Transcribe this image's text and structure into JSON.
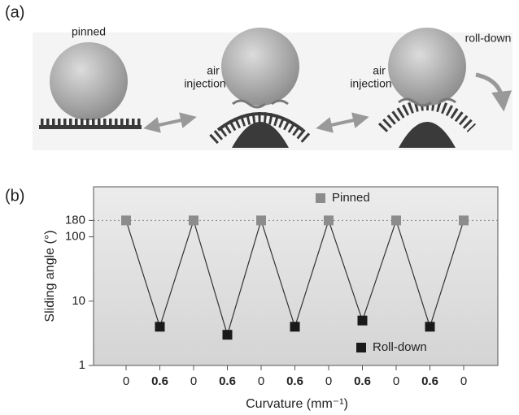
{
  "panel_a": {
    "label": "(a)",
    "state_1": "pinned",
    "injection_1": [
      "air",
      "injection"
    ],
    "injection_2": [
      "air",
      "injection"
    ],
    "state_3": "roll-down"
  },
  "chart_data": {
    "type": "line",
    "panel_label": "(b)",
    "categories": [
      "0",
      "0.6",
      "0",
      "0.6",
      "0",
      "0.6",
      "0",
      "0.6",
      "0",
      "0.6",
      "0"
    ],
    "series": [
      {
        "name": "Pinned",
        "color": "#8c8c8c",
        "values": [
          180,
          null,
          180,
          null,
          180,
          null,
          180,
          null,
          180,
          null,
          180
        ]
      },
      {
        "name": "Roll-down",
        "color": "#1a1a1a",
        "values": [
          null,
          4,
          null,
          3,
          null,
          4,
          null,
          5,
          null,
          4,
          null
        ]
      }
    ],
    "log_y": true,
    "ylim": [
      1,
      600
    ],
    "yticks": [
      1,
      10,
      100,
      180
    ],
    "reference_line": 180,
    "xlabel": "Curvature (mm⁻¹)",
    "ylabel": "Sliding angle (°)"
  }
}
